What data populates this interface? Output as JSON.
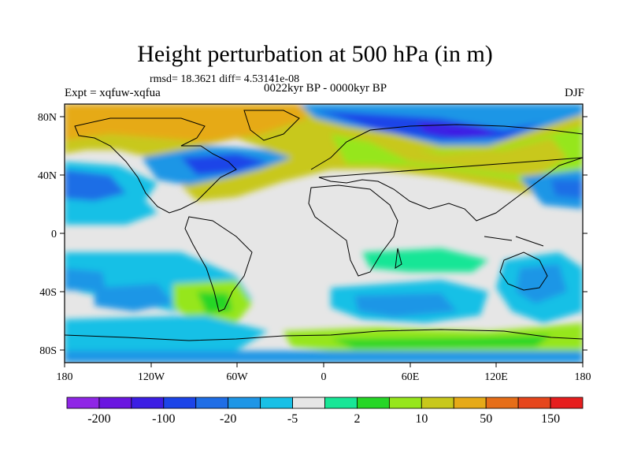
{
  "header": {
    "title": "Height perturbation at 500 hPa (in m)",
    "stats": "rmsd= 18.3621 diff= 4.53141e-08",
    "experiment": "Expt = xqfuw-xqfua",
    "period": "0022kyr BP - 0000kyr BP",
    "season": "DJF"
  },
  "axes": {
    "lat_labels": [
      "80N",
      "40N",
      "0",
      "40S",
      "80S"
    ],
    "lon_labels": [
      "180",
      "120W",
      "60W",
      "0",
      "60E",
      "120E",
      "180"
    ]
  },
  "colorbar": {
    "colors": [
      "#8f26e6",
      "#6a16e0",
      "#3c1ee4",
      "#1c44e8",
      "#1f6ee6",
      "#1e96e6",
      "#18c0e6",
      "#e6e6e6",
      "#18e696",
      "#26d626",
      "#96e61c",
      "#c8c81c",
      "#e6aa18",
      "#e66e18",
      "#e6461c",
      "#e61e1e"
    ],
    "labels": [
      "-200",
      "-100",
      "-20",
      "-5",
      "2",
      "10",
      "50",
      "150"
    ]
  },
  "colors": {
    "background_field": "#e6e6e6",
    "coastline": "#000000"
  }
}
